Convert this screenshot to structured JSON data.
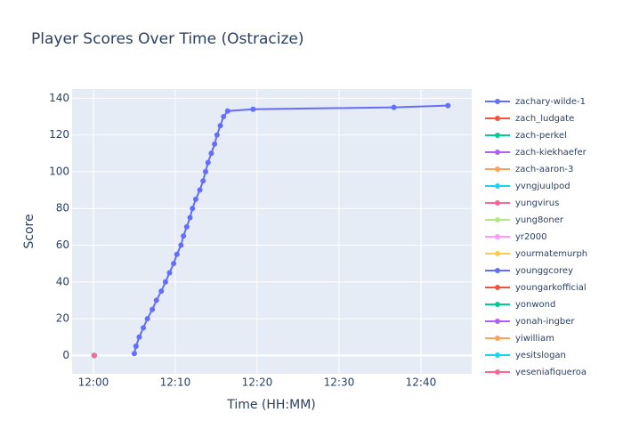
{
  "chart_data": {
    "type": "line",
    "title": "Player Scores Over Time (Ostracize)",
    "x_label": "Time (HH:MM)",
    "y_label": "Score",
    "xlim": [
      -2.6,
      46.2
    ],
    "xticks": [
      {
        "value": 0,
        "label": "12:00"
      },
      {
        "value": 10,
        "label": "12:10"
      },
      {
        "value": 20,
        "label": "12:20"
      },
      {
        "value": 30,
        "label": "12:30"
      },
      {
        "value": 40,
        "label": "12:40"
      }
    ],
    "ylim": [
      -10,
      145
    ],
    "yticks": [
      0,
      20,
      40,
      60,
      80,
      100,
      120,
      140
    ],
    "grid": true,
    "series": [
      {
        "name": "zachary-wilde-1",
        "color": "#636efa",
        "x": [
          5.0,
          5.2,
          5.6,
          6.1,
          6.6,
          7.2,
          7.7,
          8.3,
          8.8,
          9.3,
          9.8,
          10.2,
          10.7,
          11.0,
          11.4,
          11.8,
          12.1,
          12.5,
          13.0,
          13.4,
          13.7,
          14.0,
          14.4,
          14.8,
          15.1,
          15.5,
          15.9,
          16.4,
          19.5,
          36.7,
          43.3
        ],
        "values": [
          1,
          5,
          10,
          15,
          20,
          25,
          30,
          35,
          40,
          45,
          50,
          55,
          60,
          65,
          70,
          75,
          80,
          85,
          90,
          95,
          100,
          105,
          110,
          115,
          120,
          125,
          130,
          133,
          134,
          135,
          136
        ]
      },
      {
        "name": "zach_ludgate",
        "color": "#EF553B",
        "x": [
          0.1
        ],
        "values": [
          0
        ]
      },
      {
        "name": "zach-perkel",
        "color": "#00cc96",
        "x": [
          0.1
        ],
        "values": [
          0
        ]
      },
      {
        "name": "zach-kiekhaefer",
        "color": "#ab63fa",
        "x": [
          0.1
        ],
        "values": [
          0
        ]
      },
      {
        "name": "zach-aaron-3",
        "color": "#FFA15A",
        "x": [
          0.1
        ],
        "values": [
          0
        ]
      },
      {
        "name": "yvngjuulpod",
        "color": "#19d3f3",
        "x": [
          0.1
        ],
        "values": [
          0
        ]
      },
      {
        "name": "yungvirus",
        "color": "#FF6692",
        "x": [
          0.1
        ],
        "values": [
          0
        ]
      },
      {
        "name": "yung8oner",
        "color": "#B6E880",
        "x": [
          0.1
        ],
        "values": [
          0
        ]
      },
      {
        "name": "yr2000",
        "color": "#FF97FF",
        "x": [
          0.1
        ],
        "values": [
          0
        ]
      },
      {
        "name": "yourmatemurph",
        "color": "#FECB52",
        "x": [
          0.1
        ],
        "values": [
          0
        ]
      },
      {
        "name": "younggcorey",
        "color": "#636efa",
        "x": [
          0.1
        ],
        "values": [
          0
        ]
      },
      {
        "name": "youngarkofficial",
        "color": "#EF553B",
        "x": [
          0.1
        ],
        "values": [
          0
        ]
      },
      {
        "name": "yonwond",
        "color": "#00cc96",
        "x": [
          0.1
        ],
        "values": [
          0
        ]
      },
      {
        "name": "yonah-ingber",
        "color": "#ab63fa",
        "x": [
          0.1
        ],
        "values": [
          0
        ]
      },
      {
        "name": "yiwilliam",
        "color": "#FFA15A",
        "x": [
          0.1
        ],
        "values": [
          0
        ]
      },
      {
        "name": "yesitslogan",
        "color": "#19d3f3",
        "x": [
          0.1
        ],
        "values": [
          0
        ]
      },
      {
        "name": "yeseniafigueroa",
        "color": "#FF6692",
        "x": [
          0.1
        ],
        "values": [
          0
        ]
      }
    ]
  }
}
